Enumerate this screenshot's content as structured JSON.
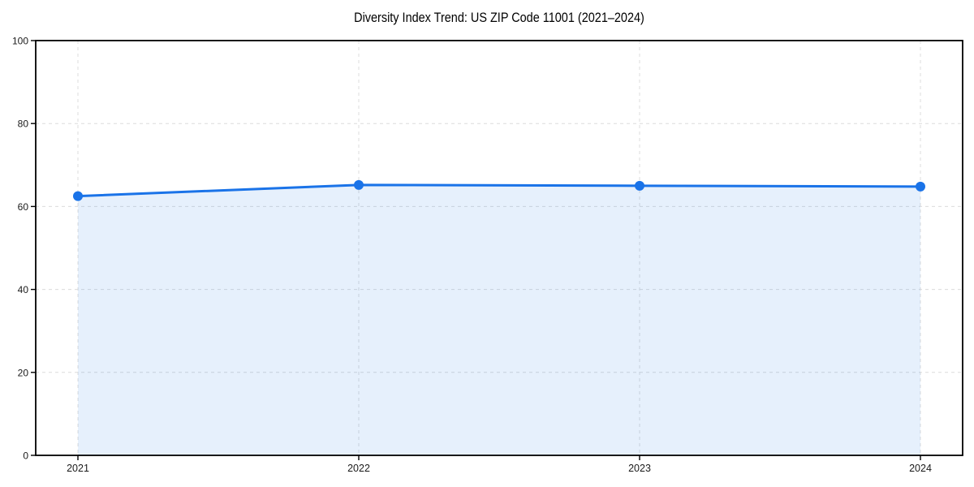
{
  "chart_data": {
    "type": "area",
    "title": "Diversity Index Trend: US ZIP Code 11001 (2021–2024)",
    "categories": [
      "2021",
      "2022",
      "2023",
      "2024"
    ],
    "series": [
      {
        "name": "Diversity Index",
        "values": [
          62.5,
          65.2,
          65.0,
          64.8
        ]
      }
    ],
    "xlabel": "",
    "ylabel": "",
    "ylim": [
      0,
      100
    ],
    "y_ticks": [
      0,
      20,
      40,
      60,
      80,
      100
    ],
    "grid": true,
    "grid_style": "dashed",
    "legend": false,
    "marker": "circle",
    "colors": {
      "line": "#1a73e8",
      "marker": "#1a73e8",
      "fill": "rgba(26,115,232,0.11)",
      "grid": "#dcdcdc",
      "axis": "#000000",
      "text": "#1a1a1a",
      "background": "#ffffff"
    }
  }
}
